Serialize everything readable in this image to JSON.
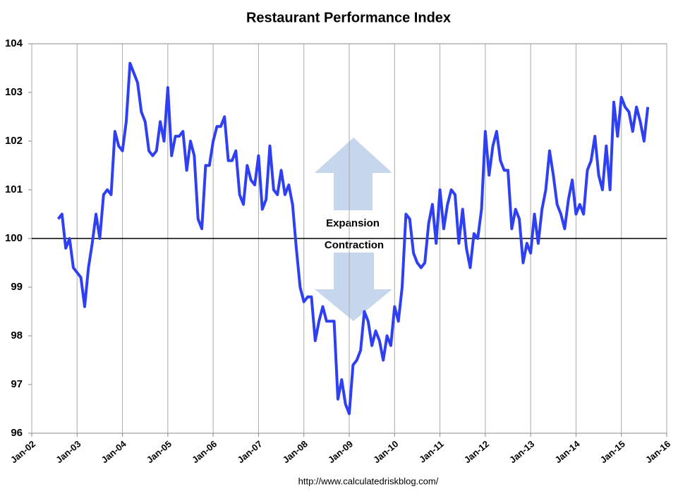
{
  "chart_data": {
    "type": "line",
    "title": "Restaurant Performance Index",
    "annotations": [
      "Expansion",
      "Contraction"
    ],
    "source": "http://www.calculatedriskblog.com/",
    "color": "#2f3ff2",
    "reference_line": 100,
    "xlim": [
      "2002-01",
      "2016-01"
    ],
    "xticks": [
      {
        "value": "2002-01",
        "label": "Jan-02"
      },
      {
        "value": "2003-01",
        "label": "Jan-03"
      },
      {
        "value": "2004-01",
        "label": "Jan-04"
      },
      {
        "value": "2005-01",
        "label": "Jan-05"
      },
      {
        "value": "2006-01",
        "label": "Jan-06"
      },
      {
        "value": "2007-01",
        "label": "Jan-07"
      },
      {
        "value": "2008-01",
        "label": "Jan-08"
      },
      {
        "value": "2009-01",
        "label": "Jan-09"
      },
      {
        "value": "2010-01",
        "label": "Jan-10"
      },
      {
        "value": "2011-01",
        "label": "Jan-11"
      },
      {
        "value": "2012-01",
        "label": "Jan-12"
      },
      {
        "value": "2013-01",
        "label": "Jan-13"
      },
      {
        "value": "2014-01",
        "label": "Jan-14"
      },
      {
        "value": "2015-01",
        "label": "Jan-15"
      },
      {
        "value": "2016-01",
        "label": "Jan-16"
      }
    ],
    "ylim": [
      96,
      104
    ],
    "yticks": [
      96,
      97,
      98,
      99,
      100,
      101,
      102,
      103,
      104
    ],
    "grid": "x",
    "x": [
      "2002-08",
      "2002-09",
      "2002-10",
      "2002-11",
      "2002-12",
      "2003-01",
      "2003-02",
      "2003-03",
      "2003-04",
      "2003-05",
      "2003-06",
      "2003-07",
      "2003-08",
      "2003-09",
      "2003-10",
      "2003-11",
      "2003-12",
      "2004-01",
      "2004-02",
      "2004-03",
      "2004-04",
      "2004-05",
      "2004-06",
      "2004-07",
      "2004-08",
      "2004-09",
      "2004-10",
      "2004-11",
      "2004-12",
      "2005-01",
      "2005-02",
      "2005-03",
      "2005-04",
      "2005-05",
      "2005-06",
      "2005-07",
      "2005-08",
      "2005-09",
      "2005-10",
      "2005-11",
      "2005-12",
      "2006-01",
      "2006-02",
      "2006-03",
      "2006-04",
      "2006-05",
      "2006-06",
      "2006-07",
      "2006-08",
      "2006-09",
      "2006-10",
      "2006-11",
      "2006-12",
      "2007-01",
      "2007-02",
      "2007-03",
      "2007-04",
      "2007-05",
      "2007-06",
      "2007-07",
      "2007-08",
      "2007-09",
      "2007-10",
      "2007-11",
      "2007-12",
      "2008-01",
      "2008-02",
      "2008-03",
      "2008-04",
      "2008-05",
      "2008-06",
      "2008-07",
      "2008-08",
      "2008-09",
      "2008-10",
      "2008-11",
      "2008-12",
      "2009-01",
      "2009-02",
      "2009-03",
      "2009-04",
      "2009-05",
      "2009-06",
      "2009-07",
      "2009-08",
      "2009-09",
      "2009-10",
      "2009-11",
      "2009-12",
      "2010-01",
      "2010-02",
      "2010-03",
      "2010-04",
      "2010-05",
      "2010-06",
      "2010-07",
      "2010-08",
      "2010-09",
      "2010-10",
      "2010-11",
      "2010-12",
      "2011-01",
      "2011-02",
      "2011-03",
      "2011-04",
      "2011-05",
      "2011-06",
      "2011-07",
      "2011-08",
      "2011-09",
      "2011-10",
      "2011-11",
      "2011-12",
      "2012-01",
      "2012-02",
      "2012-03",
      "2012-04",
      "2012-05",
      "2012-06",
      "2012-07",
      "2012-08",
      "2012-09",
      "2012-10",
      "2012-11",
      "2012-12",
      "2013-01",
      "2013-02",
      "2013-03",
      "2013-04",
      "2013-05",
      "2013-06",
      "2013-07",
      "2013-08",
      "2013-09",
      "2013-10",
      "2013-11",
      "2013-12",
      "2014-01",
      "2014-02",
      "2014-03",
      "2014-04",
      "2014-05",
      "2014-06",
      "2014-07",
      "2014-08",
      "2014-09",
      "2014-10",
      "2014-11",
      "2014-12",
      "2015-01",
      "2015-02",
      "2015-03",
      "2015-04",
      "2015-05",
      "2015-06",
      "2015-07",
      "2015-08"
    ],
    "values": [
      100.4,
      100.5,
      99.8,
      100.0,
      99.4,
      99.3,
      99.2,
      98.6,
      99.4,
      99.9,
      100.5,
      100.0,
      100.9,
      101.0,
      100.9,
      102.2,
      101.9,
      101.8,
      102.4,
      103.6,
      103.4,
      103.2,
      102.6,
      102.4,
      101.8,
      101.7,
      101.8,
      102.4,
      102.0,
      103.1,
      101.7,
      102.1,
      102.1,
      102.2,
      101.4,
      102.0,
      101.7,
      100.4,
      100.2,
      101.5,
      101.5,
      102.0,
      102.3,
      102.3,
      102.5,
      101.6,
      101.6,
      101.8,
      100.9,
      100.7,
      101.5,
      101.2,
      101.1,
      101.7,
      100.6,
      100.8,
      101.9,
      101.0,
      100.9,
      101.4,
      100.9,
      101.1,
      100.7,
      99.8,
      99.0,
      98.7,
      98.8,
      98.8,
      97.9,
      98.3,
      98.6,
      98.3,
      98.3,
      98.3,
      96.7,
      97.1,
      96.6,
      96.4,
      97.4,
      97.5,
      97.7,
      98.5,
      98.3,
      97.8,
      98.1,
      97.9,
      97.5,
      98.0,
      97.8,
      98.6,
      98.3,
      99.0,
      100.5,
      100.4,
      99.7,
      99.5,
      99.4,
      99.5,
      100.3,
      100.7,
      99.9,
      101.0,
      100.2,
      100.7,
      101.0,
      100.9,
      99.9,
      100.6,
      99.8,
      99.4,
      100.1,
      100.0,
      100.6,
      102.2,
      101.3,
      101.9,
      102.2,
      101.6,
      101.4,
      101.4,
      100.2,
      100.6,
      100.4,
      99.5,
      99.9,
      99.7,
      100.5,
      99.9,
      100.6,
      101.0,
      101.8,
      101.3,
      100.7,
      100.5,
      100.2,
      100.8,
      101.2,
      100.5,
      100.7,
      100.5,
      101.4,
      101.6,
      102.1,
      101.3,
      101.0,
      101.9,
      101.0,
      102.8,
      102.1,
      102.9,
      102.7,
      102.6,
      102.2,
      102.7,
      102.4,
      102.0,
      102.7
    ]
  }
}
